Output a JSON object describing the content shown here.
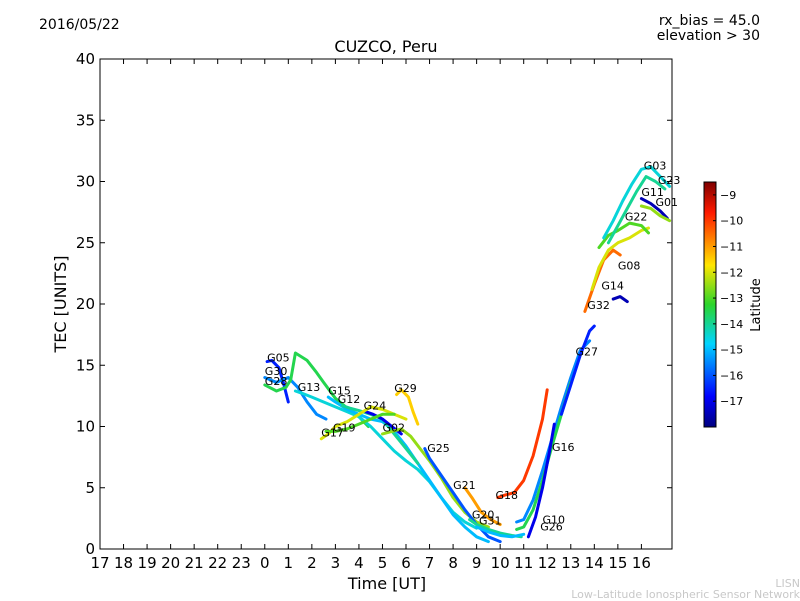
{
  "header": {
    "date": "2016/05/22",
    "rx_bias": "rx_bias = 45.0",
    "elevation": "elevation > 30"
  },
  "footer": {
    "credit_short": "LISN",
    "credit_long": "Low-Latitude Ionospheric Sensor Network"
  },
  "chart_data": {
    "type": "scatter",
    "title": "CUZCO, Peru",
    "xlabel": "Time [UT]",
    "ylabel": "TEC [UNITS]",
    "xlim": [
      17,
      41.3
    ],
    "ylim": [
      0,
      40
    ],
    "x_ticks": [
      17,
      18,
      19,
      20,
      21,
      22,
      23,
      24,
      25,
      26,
      27,
      28,
      29,
      30,
      31,
      32,
      33,
      34,
      35,
      36,
      37,
      38,
      39,
      40
    ],
    "x_tick_labels": [
      "17",
      "18",
      "19",
      "20",
      "21",
      "22",
      "23",
      "0",
      "1",
      "2",
      "3",
      "4",
      "5",
      "6",
      "7",
      "8",
      "9",
      "10",
      "11",
      "12",
      "13",
      "14",
      "15",
      "16"
    ],
    "y_ticks": [
      0,
      5,
      10,
      15,
      20,
      25,
      30,
      35,
      40
    ],
    "y_tick_labels": [
      "0",
      "5",
      "10",
      "15",
      "20",
      "25",
      "30",
      "35",
      "40"
    ],
    "grid": false,
    "colorbar": {
      "label": "Latitude",
      "min": -18,
      "max": -8.5,
      "ticks": [
        -9,
        -10,
        -11,
        -12,
        -13,
        -14,
        -15,
        -16,
        -17
      ],
      "tick_labels": [
        "−9",
        "−10",
        "−11",
        "−12",
        "−13",
        "−14",
        "−15",
        "−16",
        "−17"
      ]
    },
    "series": [
      {
        "name": "G05",
        "lat": -16.5,
        "points": [
          [
            24.1,
            15.3
          ],
          [
            24.3,
            15.4
          ],
          [
            24.6,
            14.8
          ],
          [
            24.8,
            13.5
          ],
          [
            25.0,
            12.0
          ]
        ]
      },
      {
        "name": "G30",
        "lat": -15.5,
        "points": [
          [
            24.0,
            14.0
          ],
          [
            24.5,
            13.6
          ],
          [
            25.0,
            14.0
          ],
          [
            25.4,
            13.2
          ],
          [
            25.8,
            12.0
          ],
          [
            26.2,
            11.0
          ],
          [
            26.6,
            10.6
          ]
        ]
      },
      {
        "name": "G28",
        "lat": -13.5,
        "points": [
          [
            24.0,
            13.4
          ],
          [
            24.5,
            12.9
          ],
          [
            24.9,
            13.2
          ],
          [
            25.1,
            13.8
          ],
          [
            25.3,
            16.0
          ],
          [
            25.8,
            15.4
          ],
          [
            26.2,
            14.4
          ],
          [
            26.5,
            13.6
          ],
          [
            27.0,
            12.3
          ],
          [
            27.5,
            11.5
          ],
          [
            28.0,
            10.8
          ],
          [
            28.4,
            10.0
          ]
        ]
      },
      {
        "name": "G13",
        "lat": -14.5,
        "points": [
          [
            25.3,
            12.9
          ],
          [
            25.6,
            12.7
          ],
          [
            26.0,
            12.4
          ],
          [
            26.5,
            12.0
          ],
          [
            27.0,
            11.6
          ],
          [
            27.5,
            11.2
          ],
          [
            28.0,
            10.8
          ],
          [
            28.5,
            10.0
          ],
          [
            29.0,
            9.0
          ],
          [
            29.5,
            8.0
          ],
          [
            30.0,
            7.2
          ],
          [
            30.5,
            6.5
          ],
          [
            31.0,
            5.5
          ],
          [
            31.5,
            4.2
          ],
          [
            32.0,
            3.0
          ],
          [
            32.5,
            2.2
          ],
          [
            33.0,
            1.7
          ]
        ]
      },
      {
        "name": "G15",
        "lat": -15.0,
        "points": [
          [
            26.7,
            12.4
          ],
          [
            27.0,
            12.0
          ],
          [
            27.5,
            11.4
          ],
          [
            28.0,
            11.0
          ],
          [
            28.5,
            10.6
          ],
          [
            29.0,
            10.4
          ],
          [
            29.5,
            9.6
          ],
          [
            30.0,
            8.4
          ],
          [
            30.5,
            7.0
          ],
          [
            31.0,
            5.6
          ],
          [
            31.5,
            4.2
          ],
          [
            32.0,
            2.8
          ],
          [
            32.5,
            1.8
          ],
          [
            33.0,
            1.0
          ],
          [
            33.5,
            0.6
          ]
        ]
      },
      {
        "name": "G12",
        "lat": -14.0,
        "points": [
          [
            27.3,
            11.7
          ],
          [
            27.6,
            11.5
          ],
          [
            28.0,
            11.3
          ],
          [
            28.5,
            11.0
          ],
          [
            29.0,
            10.6
          ],
          [
            29.5,
            9.4
          ],
          [
            30.0,
            8.2
          ],
          [
            30.5,
            7.0
          ]
        ]
      },
      {
        "name": "G24",
        "lat": -17.0,
        "points": [
          [
            28.3,
            11.2
          ],
          [
            28.6,
            11.0
          ],
          [
            29.0,
            10.6
          ],
          [
            29.4,
            10.0
          ],
          [
            29.8,
            9.4
          ]
        ]
      },
      {
        "name": "G29",
        "lat": -11.5,
        "points": [
          [
            29.6,
            12.6
          ],
          [
            29.8,
            13.0
          ],
          [
            30.1,
            12.4
          ],
          [
            30.3,
            11.2
          ],
          [
            30.5,
            10.2
          ]
        ]
      },
      {
        "name": "G02",
        "lat": -12.5,
        "points": [
          [
            29.0,
            9.4
          ],
          [
            29.4,
            9.6
          ],
          [
            29.8,
            9.8
          ],
          [
            30.2,
            9.2
          ],
          [
            30.6,
            8.2
          ],
          [
            31.0,
            7.2
          ],
          [
            31.5,
            5.8
          ],
          [
            32.0,
            4.2
          ],
          [
            32.5,
            3.0
          ],
          [
            33.0,
            2.2
          ],
          [
            33.5,
            1.8
          ]
        ]
      },
      {
        "name": "G17",
        "lat": -12.0,
        "points": [
          [
            26.4,
            9.0
          ],
          [
            26.7,
            9.4
          ],
          [
            27.0,
            10.0
          ],
          [
            27.5,
            10.4
          ],
          [
            28.0,
            11.0
          ],
          [
            28.5,
            11.6
          ],
          [
            29.0,
            11.4
          ],
          [
            29.5,
            11.0
          ],
          [
            30.0,
            10.6
          ]
        ]
      },
      {
        "name": "G19",
        "lat": -13.0,
        "points": [
          [
            26.6,
            9.6
          ],
          [
            27.0,
            9.6
          ],
          [
            27.5,
            9.8
          ],
          [
            28.0,
            10.2
          ],
          [
            28.5,
            10.6
          ],
          [
            29.0,
            11.0
          ],
          [
            29.5,
            11.0
          ]
        ]
      },
      {
        "name": "G25",
        "lat": -16.0,
        "points": [
          [
            30.8,
            8.2
          ],
          [
            31.0,
            7.4
          ],
          [
            31.5,
            6.0
          ],
          [
            32.0,
            4.6
          ],
          [
            32.5,
            3.2
          ],
          [
            33.0,
            2.0
          ],
          [
            33.5,
            1.0
          ],
          [
            34.0,
            0.6
          ]
        ]
      },
      {
        "name": "G21",
        "lat": -11.0,
        "points": [
          [
            32.5,
            5.0
          ],
          [
            32.8,
            4.2
          ],
          [
            33.2,
            3.0
          ],
          [
            33.6,
            2.4
          ],
          [
            34.0,
            2.0
          ]
        ]
      },
      {
        "name": "G18",
        "lat": -10.0,
        "points": [
          [
            33.9,
            4.2
          ],
          [
            34.2,
            4.4
          ],
          [
            34.6,
            4.6
          ],
          [
            35.0,
            5.6
          ],
          [
            35.4,
            7.6
          ],
          [
            35.8,
            10.6
          ],
          [
            36.0,
            13.0
          ]
        ]
      },
      {
        "name": "G20",
        "lat": -14.0,
        "points": [
          [
            32.7,
            2.4
          ],
          [
            33.0,
            2.0
          ],
          [
            33.5,
            1.6
          ],
          [
            34.0,
            1.3
          ],
          [
            34.5,
            1.1
          ],
          [
            34.9,
            1.0
          ]
        ]
      },
      {
        "name": "G31",
        "lat": -15.0,
        "points": [
          [
            33.0,
            1.8
          ],
          [
            33.5,
            1.4
          ],
          [
            34.0,
            1.1
          ],
          [
            34.5,
            1.0
          ],
          [
            35.0,
            1.2
          ]
        ]
      },
      {
        "name": "G10",
        "lat": -15.5,
        "points": [
          [
            34.7,
            2.2
          ],
          [
            35.0,
            2.4
          ],
          [
            35.4,
            4.0
          ],
          [
            35.8,
            6.4
          ],
          [
            36.2,
            9.0
          ],
          [
            36.6,
            11.6
          ],
          [
            37.0,
            14.0
          ],
          [
            37.4,
            16.2
          ],
          [
            37.8,
            17.0
          ]
        ]
      },
      {
        "name": "G26",
        "lat": -13.5,
        "points": [
          [
            34.7,
            1.6
          ],
          [
            35.0,
            1.8
          ],
          [
            35.4,
            3.2
          ],
          [
            35.8,
            5.6
          ],
          [
            36.2,
            8.4
          ],
          [
            36.6,
            11.0
          ],
          [
            37.0,
            13.6
          ]
        ]
      },
      {
        "name": "G16",
        "lat": -17.0,
        "points": [
          [
            35.2,
            1.0
          ],
          [
            35.5,
            2.6
          ],
          [
            35.8,
            5.0
          ],
          [
            36.1,
            8.0
          ],
          [
            36.3,
            10.2
          ]
        ]
      },
      {
        "name": "G27",
        "lat": -16.5,
        "points": [
          [
            36.6,
            11.0
          ],
          [
            37.0,
            13.4
          ],
          [
            37.4,
            15.8
          ],
          [
            37.8,
            17.8
          ],
          [
            38.0,
            18.2
          ]
        ]
      },
      {
        "name": "G32",
        "lat": -10.5,
        "points": [
          [
            37.6,
            19.4
          ],
          [
            38.0,
            21.6
          ],
          [
            38.4,
            23.6
          ],
          [
            38.8,
            24.4
          ],
          [
            39.1,
            24.0
          ]
        ]
      },
      {
        "name": "G14",
        "lat": -12.0,
        "points": [
          [
            37.9,
            21.2
          ],
          [
            38.2,
            23.0
          ],
          [
            38.6,
            24.4
          ],
          [
            39.0,
            25.0
          ],
          [
            39.5,
            25.4
          ],
          [
            40.0,
            26.0
          ],
          [
            40.3,
            26.2
          ]
        ]
      },
      {
        "name": "G08",
        "lat": -17.5,
        "points": [
          [
            38.8,
            20.4
          ],
          [
            39.1,
            20.6
          ],
          [
            39.4,
            20.2
          ]
        ]
      },
      {
        "name": "G22",
        "lat": -13.0,
        "points": [
          [
            38.2,
            24.6
          ],
          [
            38.6,
            25.6
          ],
          [
            39.0,
            26.0
          ],
          [
            39.5,
            26.6
          ],
          [
            40.0,
            26.4
          ],
          [
            40.3,
            25.8
          ]
        ]
      },
      {
        "name": "G03",
        "lat": -14.5,
        "points": [
          [
            38.4,
            25.4
          ],
          [
            38.8,
            26.8
          ],
          [
            39.2,
            28.4
          ],
          [
            39.6,
            29.8
          ],
          [
            40.0,
            31.0
          ],
          [
            40.4,
            31.2
          ],
          [
            40.8,
            30.4
          ],
          [
            41.2,
            29.6
          ]
        ]
      },
      {
        "name": "G23",
        "lat": -14.0,
        "points": [
          [
            38.6,
            25.0
          ],
          [
            39.0,
            26.4
          ],
          [
            39.4,
            27.8
          ],
          [
            39.8,
            29.2
          ],
          [
            40.2,
            30.4
          ],
          [
            40.6,
            30.0
          ],
          [
            41.0,
            29.4
          ]
        ]
      },
      {
        "name": "G11",
        "lat": -17.5,
        "points": [
          [
            40.0,
            28.6
          ],
          [
            40.4,
            28.2
          ],
          [
            40.8,
            27.6
          ],
          [
            41.1,
            27.0
          ]
        ]
      },
      {
        "name": "G01",
        "lat": -12.5,
        "points": [
          [
            40.0,
            28.0
          ],
          [
            40.4,
            27.8
          ],
          [
            40.8,
            27.2
          ],
          [
            41.2,
            26.8
          ]
        ]
      }
    ],
    "labels": [
      {
        "text": "G05",
        "x": 24.1,
        "y": 15.3
      },
      {
        "text": "G30",
        "x": 24.0,
        "y": 14.2
      },
      {
        "text": "G28",
        "x": 24.0,
        "y": 13.4
      },
      {
        "text": "G13",
        "x": 25.4,
        "y": 12.9
      },
      {
        "text": "G15",
        "x": 26.7,
        "y": 12.6
      },
      {
        "text": "G12",
        "x": 27.1,
        "y": 11.9
      },
      {
        "text": "G24",
        "x": 28.2,
        "y": 11.4
      },
      {
        "text": "G29",
        "x": 29.5,
        "y": 12.8
      },
      {
        "text": "G02",
        "x": 29.0,
        "y": 9.6
      },
      {
        "text": "G17",
        "x": 26.4,
        "y": 9.2
      },
      {
        "text": "G19",
        "x": 26.9,
        "y": 9.6
      },
      {
        "text": "G25",
        "x": 30.9,
        "y": 7.9
      },
      {
        "text": "G21",
        "x": 32.0,
        "y": 4.9
      },
      {
        "text": "G18",
        "x": 33.8,
        "y": 4.1
      },
      {
        "text": "G20",
        "x": 32.8,
        "y": 2.5
      },
      {
        "text": "G31",
        "x": 33.1,
        "y": 2.0
      },
      {
        "text": "G10",
        "x": 35.8,
        "y": 2.1
      },
      {
        "text": "G26",
        "x": 35.7,
        "y": 1.5
      },
      {
        "text": "G16",
        "x": 36.2,
        "y": 8.0
      },
      {
        "text": "G27",
        "x": 37.2,
        "y": 15.8
      },
      {
        "text": "G32",
        "x": 37.7,
        "y": 19.6
      },
      {
        "text": "G14",
        "x": 38.3,
        "y": 21.2
      },
      {
        "text": "G08",
        "x": 39.0,
        "y": 22.8
      },
      {
        "text": "G22",
        "x": 39.3,
        "y": 26.8
      },
      {
        "text": "G03",
        "x": 40.1,
        "y": 31.0
      },
      {
        "text": "G23",
        "x": 40.7,
        "y": 29.8
      },
      {
        "text": "G11",
        "x": 40.0,
        "y": 28.8
      },
      {
        "text": "G01",
        "x": 40.6,
        "y": 28.0
      }
    ]
  }
}
